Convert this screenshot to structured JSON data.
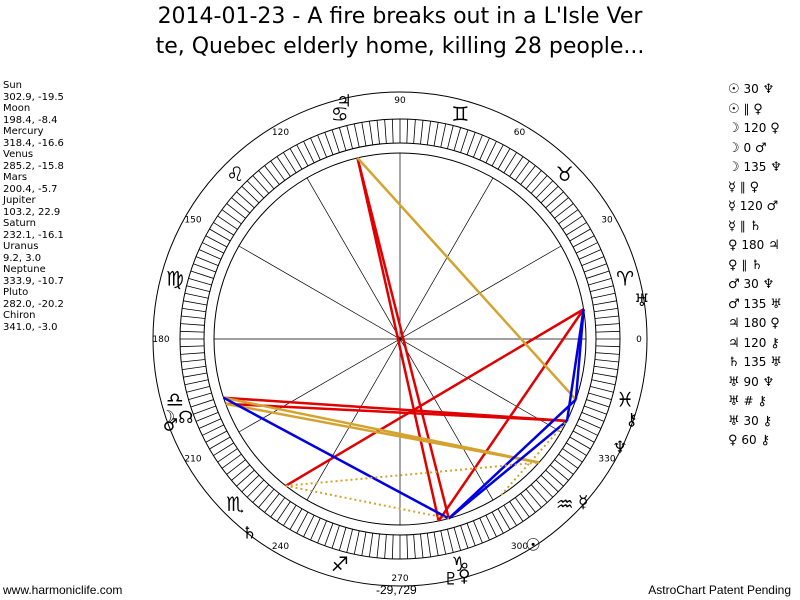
{
  "title": {
    "line1": "2014-01-23 - A fire breaks out in a L'Isle Ver",
    "line2": "te, Quebec elderly home, killing 28 people..."
  },
  "planets": [
    {
      "name": "Sun",
      "coords": "302.9, -19.5",
      "lon": 302.9,
      "glyph": "☉"
    },
    {
      "name": "Moon",
      "coords": "198.4, -8.4",
      "lon": 198.4,
      "glyph": "☽"
    },
    {
      "name": "Mercury",
      "coords": "318.4, -16.6",
      "lon": 318.4,
      "glyph": "☿"
    },
    {
      "name": "Venus",
      "coords": "285.2, -15.8",
      "lon": 285.2,
      "glyph": "♀"
    },
    {
      "name": "Mars",
      "coords": "200.4, -5.7",
      "lon": 200.4,
      "glyph": "♂"
    },
    {
      "name": "Jupiter",
      "coords": "103.2, 22.9",
      "lon": 103.2,
      "glyph": "♃"
    },
    {
      "name": "Saturn",
      "coords": "232.1, -16.1",
      "lon": 232.1,
      "glyph": "♄"
    },
    {
      "name": "Uranus",
      "coords": "9.2, 3.0",
      "lon": 9.2,
      "glyph": "♅"
    },
    {
      "name": "Neptune",
      "coords": "333.9, -10.7",
      "lon": 333.9,
      "glyph": "♆"
    },
    {
      "name": "Pluto",
      "coords": "282.0, -20.2",
      "lon": 282.0,
      "glyph": "♇"
    },
    {
      "name": "Chiron",
      "coords": "341.0, -3.0",
      "lon": 341.0,
      "glyph": "⚷"
    }
  ],
  "node": {
    "glyph": "☊",
    "lon": 200.0
  },
  "aspects": [
    {
      "p1": "☉",
      "angle": "30",
      "p2": "♆"
    },
    {
      "p1": "☉",
      "angle": "∥",
      "p2": "♀"
    },
    {
      "p1": "☽",
      "angle": "120",
      "p2": "♀"
    },
    {
      "p1": "☽",
      "angle": "0",
      "p2": "♂"
    },
    {
      "p1": "☽",
      "angle": "135",
      "p2": "♆"
    },
    {
      "p1": "☿",
      "angle": "∥",
      "p2": "♀"
    },
    {
      "p1": "☿",
      "angle": "120",
      "p2": "♂"
    },
    {
      "p1": "☿",
      "angle": "∥",
      "p2": "♄"
    },
    {
      "p1": "♀",
      "angle": "180",
      "p2": "♃"
    },
    {
      "p1": "♀",
      "angle": "∥",
      "p2": "♄"
    },
    {
      "p1": "♂",
      "angle": "30",
      "p2": "♆"
    },
    {
      "p1": "♂",
      "angle": "135",
      "p2": "♅"
    },
    {
      "p1": "♃",
      "angle": "180",
      "p2": "♀"
    },
    {
      "p1": "♃",
      "angle": "120",
      "p2": "⚷"
    },
    {
      "p1": "♄",
      "angle": "135",
      "p2": "♅"
    },
    {
      "p1": "♅",
      "angle": "90",
      "p2": "♆"
    },
    {
      "p1": "♅",
      "angle": "#",
      "p2": "⚷"
    },
    {
      "p1": "♅",
      "angle": "30",
      "p2": "⚷"
    },
    {
      "p1": "♀",
      "angle": "60",
      "p2": "⚷"
    }
  ],
  "wheel": {
    "degree_labels": [
      "0",
      "30",
      "60",
      "90",
      "120",
      "150",
      "180",
      "210",
      "240",
      "270",
      "300",
      "330"
    ],
    "sign_glyphs": [
      "♈",
      "♉",
      "♊",
      "♋",
      "♌",
      "♍",
      "♎",
      "♏",
      "♐",
      "♑",
      "♒",
      "♓"
    ]
  },
  "colors": {
    "hard_aspect": "#e00000",
    "soft_aspect": "#d4a32f",
    "trine_aspect": "#0000e0",
    "minor_aspect": "#d4a32f"
  },
  "footer": {
    "website": "www.harmoniclife.com",
    "center": "-29,729",
    "credit": "AstroChart Patent Pending"
  }
}
